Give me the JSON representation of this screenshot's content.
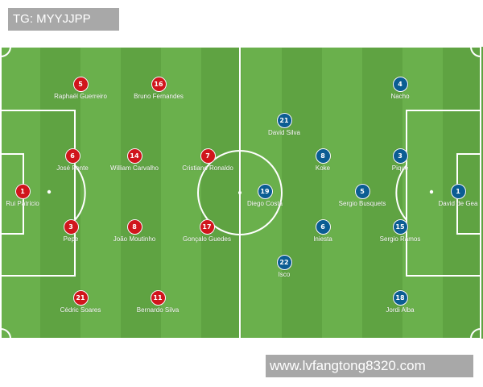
{
  "header_tag": "TG: MYYJJPP",
  "watermark": "www.lvfangtong8320.com",
  "colors": {
    "pitch_light": "#6ab04c",
    "pitch_dark": "#5fa342",
    "line": "#ffffff",
    "portugal": "#d0151c",
    "spain": "#0b5d93"
  },
  "teams": [
    {
      "side": "left",
      "color_key": "portugal",
      "players": [
        {
          "number": "5",
          "name": "Raphaël Guerreiro",
          "row": 0,
          "col": 1
        },
        {
          "number": "16",
          "name": "Bruno Fernandes",
          "row": 0,
          "col": 2
        },
        {
          "number": "6",
          "name": "José Fonte",
          "row": 2,
          "col": 1
        },
        {
          "number": "14",
          "name": "William Carvalho",
          "row": 2,
          "col": 2
        },
        {
          "number": "7",
          "name": "Cristiano Ronaldo",
          "row": 2,
          "col": 3
        },
        {
          "number": "1",
          "name": "Rui Patrício",
          "row": 3,
          "col": 0
        },
        {
          "number": "3",
          "name": "Pepe",
          "row": 4,
          "col": 1
        },
        {
          "number": "8",
          "name": "João Moutinho",
          "row": 4,
          "col": 2
        },
        {
          "number": "17",
          "name": "Gonçalo Guedes",
          "row": 4,
          "col": 3
        },
        {
          "number": "21",
          "name": "Cédric Soares",
          "row": 6,
          "col": 1
        },
        {
          "number": "11",
          "name": "Bernardo Silva",
          "row": 6,
          "col": 2
        }
      ]
    },
    {
      "side": "right",
      "color_key": "spain",
      "players": [
        {
          "number": "4",
          "name": "Nacho"
        },
        {
          "number": "21",
          "name": "David Silva"
        },
        {
          "number": "8",
          "name": "Koke"
        },
        {
          "number": "3",
          "name": "Piqué"
        },
        {
          "number": "19",
          "name": "Diego Costa"
        },
        {
          "number": "5",
          "name": "Sergio Busquets"
        },
        {
          "number": "1",
          "name": "David de Gea"
        },
        {
          "number": "6",
          "name": "Iniesta"
        },
        {
          "number": "15",
          "name": "Sergio Ramos"
        },
        {
          "number": "22",
          "name": "Isco"
        },
        {
          "number": "18",
          "name": "Jordi Alba"
        }
      ]
    }
  ]
}
